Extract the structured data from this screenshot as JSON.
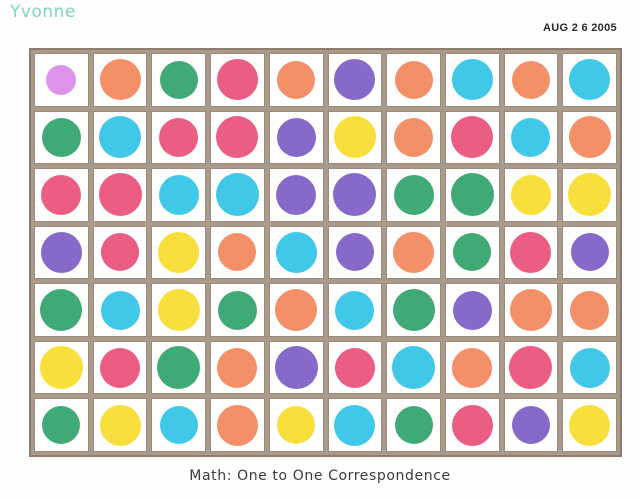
{
  "header": {
    "name": "Yvonne",
    "date_stamp": "AUG 2 6 2005"
  },
  "caption": "Math:  One to One  Correspondence",
  "colors": {
    "violet": "#d98ae8",
    "orange": "#f2875a",
    "green": "#2fa36a",
    "pink": "#ea4f7a",
    "purple": "#7d5cc6",
    "cyan": "#2fc3e6",
    "yellow": "#f9dc2a",
    "grid_line": "#8d7c6c"
  },
  "grid": {
    "columns": 10,
    "rows": [
      [
        "violet",
        "orange",
        "green",
        "pink",
        "orange",
        "purple",
        "orange",
        "cyan",
        "orange",
        "cyan"
      ],
      [
        "green",
        "cyan",
        "pink",
        "pink",
        "purple",
        "yellow",
        "orange",
        "pink",
        "cyan",
        "orange"
      ],
      [
        "pink",
        "pink",
        "cyan",
        "cyan",
        "purple",
        "purple",
        "green",
        "green",
        "yellow",
        "yellow"
      ],
      [
        "purple",
        "pink",
        "yellow",
        "orange",
        "cyan",
        "purple",
        "orange",
        "green",
        "pink",
        "purple"
      ],
      [
        "green",
        "cyan",
        "yellow",
        "green",
        "orange",
        "cyan",
        "green",
        "purple",
        "orange",
        "orange"
      ],
      [
        "yellow",
        "pink",
        "green",
        "orange",
        "purple",
        "pink",
        "cyan",
        "orange",
        "pink",
        "cyan"
      ],
      [
        "green",
        "yellow",
        "cyan",
        "orange",
        "yellow",
        "cyan",
        "green",
        "pink",
        "purple",
        "yellow"
      ]
    ]
  }
}
